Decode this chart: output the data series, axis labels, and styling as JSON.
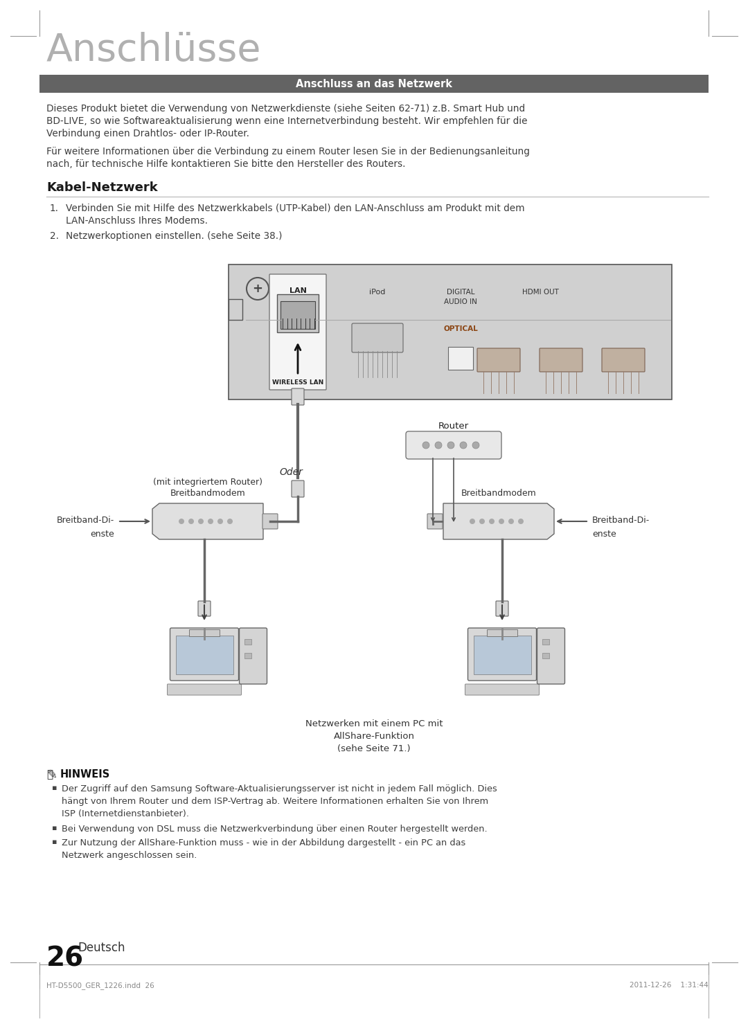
{
  "page_title": "Anschlüsse",
  "header_text": "Anschluss an das Netzwerk",
  "header_bg": "#636363",
  "header_text_color": "#ffffff",
  "body_text1_line1": "Dieses Produkt bietet die Verwendung von Netzwerkdienste (siehe Seiten 62-71) z.B. Smart Hub und",
  "body_text1_line2": "BD-LIVE, so wie Softwareaktualisierung wenn eine Internetverbindung besteht. Wir empfehlen für die",
  "body_text1_line3": "Verbindung einen Drahtlos- oder IP-Router.",
  "body_text2_line1": "Für weitere Informationen über die Verbindung zu einem Router lesen Sie in der Bedienungsanleitung",
  "body_text2_line2": "nach, für technische Hilfe kontaktieren Sie bitte den Hersteller des Routers.",
  "section_title": "Kabel-Netzwerk",
  "step1_num": "1.",
  "step1_a": "Verbinden Sie mit Hilfe des Netzwerkkabels (UTP-Kabel) den LAN-Anschluss am Produkt mit dem",
  "step1_b": "LAN-Anschluss Ihres Modems.",
  "step2_num": "2.",
  "step2": "Netzwerkoptionen einstellen. (sehe Seite 38.)",
  "note_title": "HINWEIS",
  "note1_line1": "Der Zugriff auf den Samsung Software-Aktualisierungsserver ist nicht in jedem Fall möglich. Dies",
  "note1_line2": "hängt von Ihrem Router und dem ISP-Vertrag ab. Weitere Informationen erhalten Sie von Ihrem",
  "note1_line3": "ISP (Internetdienstanbieter).",
  "note2": "Bei Verwendung von DSL muss die Netzwerkverbindung über einen Router hergestellt werden.",
  "note3_line1": "Zur Nutzung der AllShare-Funktion muss - wie in der Abbildung dargestellt - ein PC an das",
  "note3_line2": "Netzwerk angeschlossen sein.",
  "page_number": "26",
  "page_lang": "Deutsch",
  "footer_left": "HT-D5500_GER_1226.indd  26",
  "footer_right": "2011-12-26    1:31:44",
  "text_color": "#3d3d3d",
  "bg_color": "#ffffff",
  "diagram_label_router": "Router",
  "diagram_label_modem1_l1": "Breitbandmodem",
  "diagram_label_modem1_l2": "(mit integriertem Router)",
  "diagram_label_oder": "Oder",
  "diagram_label_modem2": "Breitbandmodem",
  "diagram_label_bb1_l1": "Breitband-Di-",
  "diagram_label_bb1_l2": "enste",
  "diagram_label_bb2_l1": "Breitband-Di-",
  "diagram_label_bb2_l2": "enste",
  "diagram_net_l1": "Netzwerken mit einem PC mit",
  "diagram_net_l2": "AllShare-Funktion",
  "diagram_net_l3": "(sehe Seite 71.)"
}
